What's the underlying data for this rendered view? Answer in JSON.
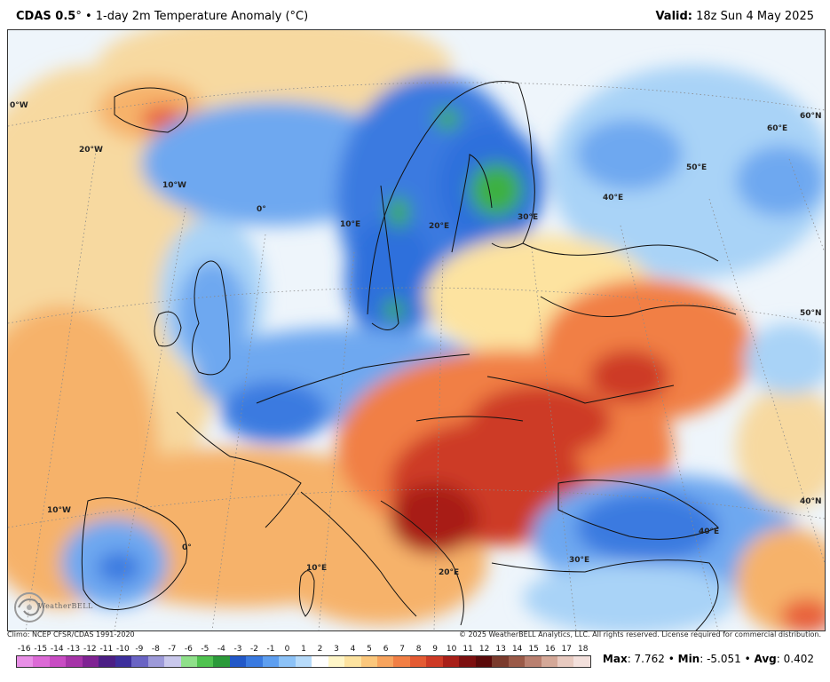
{
  "header": {
    "model": "CDAS 0.5",
    "degree_symbol": "°",
    "separator": " • ",
    "description": "1-day 2m Temperature Anomaly (",
    "unit": "°C",
    "close": ")",
    "valid_label": "Valid:",
    "valid_time": "18z Sun 4 May 2025"
  },
  "map": {
    "region": "Europe",
    "grid_labels": {
      "lon_20w_top": "20°W",
      "lon_10w_top": "10°W",
      "lon_0_top": "0°",
      "lon_10e_top": "10°E",
      "lon_20e_top": "20°E",
      "lon_30e_top": "30°E",
      "lon_40e_top": "40°E",
      "lon_50e_top": "50°E",
      "lon_60e_top": "60°E",
      "lat_60n": "60°N",
      "lat_50n": "50°N",
      "lat_40n": "40°N",
      "lon_0w_left": "0°W",
      "lon_10w_bottom": "10°W",
      "lon_0_bottom": "0°",
      "lon_10e_bottom": "10°E",
      "lon_20e_bottom": "20°E",
      "lon_30e_bottom": "30°E",
      "lon_40e_bottom": "40°E"
    },
    "colors": {
      "ocean_neutral": "#eef5fb",
      "strong_cold": "#2f6fdc",
      "cold": "#6ea8f0",
      "cool": "#a9d3f7",
      "very_cold_green": "#3cb043",
      "mild_warm": "#f7d9a0",
      "warm": "#f6b26b",
      "hot": "#e8603a",
      "very_hot": "#c0281a"
    }
  },
  "logo": {
    "text": "WeatherBELL",
    "icon": "swirl-logo-icon"
  },
  "footer": {
    "climo": "Climo: NCEP CFSR/CDAS 1991-2020",
    "copyright": "© 2025 WeatherBELL Analytics, LLC. All rights reserved. License required for commercial distribution."
  },
  "colorbar": {
    "unit": "°C",
    "ticks": [
      "-16",
      "-15",
      "-14",
      "-13",
      "-12",
      "-11",
      "-10",
      "-9",
      "-8",
      "-7",
      "-6",
      "-5",
      "-4",
      "-3",
      "-2",
      "-1",
      "0",
      "1",
      "2",
      "3",
      "4",
      "5",
      "6",
      "7",
      "8",
      "9",
      "10",
      "11",
      "12",
      "13",
      "14",
      "15",
      "16",
      "17",
      "18"
    ],
    "colors": [
      "#e88fe6",
      "#dc6ad6",
      "#c84cc3",
      "#a634a8",
      "#7f2393",
      "#4c1f85",
      "#3d2f9c",
      "#6a64c4",
      "#9d9ad9",
      "#c9c8ec",
      "#8fe08a",
      "#4fc24f",
      "#2b9a3a",
      "#2258c8",
      "#3a7ae0",
      "#5e9ff0",
      "#8cc2f7",
      "#b7dbfa",
      "#ffffff",
      "#fff6c8",
      "#fde3a0",
      "#fbc77c",
      "#f7a45e",
      "#f17f45",
      "#e45b33",
      "#cd3a25",
      "#a81f18",
      "#7d1010",
      "#5a0a0a",
      "#7a3a2c",
      "#9a5a48",
      "#b98070",
      "#d4a898",
      "#e8cac0",
      "#f3e0dc"
    ]
  },
  "stats": {
    "max_label": "Max",
    "max_value": "7.762",
    "min_label": "Min",
    "min_value": "-5.051",
    "avg_label": "Avg",
    "avg_value": "0.402",
    "sep": " • "
  }
}
